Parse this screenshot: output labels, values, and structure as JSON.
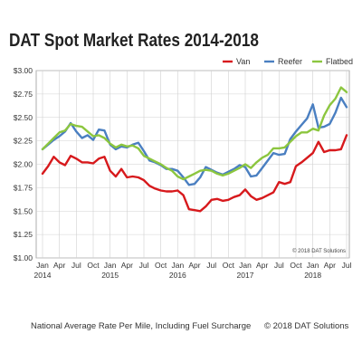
{
  "title": "DAT Spot Market Rates 2014-2018",
  "footer": {
    "caption": "National Average Rate Per Mile, Including Fuel Surcharge",
    "copyright": "© 2018 DAT Solutions"
  },
  "chart_data": {
    "type": "line",
    "title": "DAT Spot Market Rates 2014-2018",
    "xlabel": "",
    "ylabel": "",
    "ylim": [
      1.0,
      3.0
    ],
    "yticks": [
      1.0,
      1.25,
      1.5,
      1.75,
      2.0,
      2.25,
      2.5,
      2.75,
      3.0
    ],
    "ytick_labels": [
      "$1.00",
      "$1.25",
      "$1.50",
      "$1.75",
      "$2.00",
      "$2.25",
      "$2.50",
      "$2.75",
      "$3.00"
    ],
    "xtick_months": [
      "Jan",
      "Apr",
      "Jul",
      "Oct",
      "Jan",
      "Apr",
      "Jul",
      "Oct",
      "Jan",
      "Apr",
      "Jul",
      "Oct",
      "Jan",
      "Apr",
      "Jul",
      "Oct",
      "Jan",
      "Apr",
      "Jul"
    ],
    "xtick_years": [
      "2014",
      "",
      "",
      "",
      "2015",
      "",
      "",
      "",
      "2016",
      "",
      "",
      "",
      "2017",
      "",
      "",
      "",
      "2018",
      "",
      ""
    ],
    "grid": true,
    "legend_position": "top-right",
    "watermark": "© 2018 DAT Solutions",
    "x_start": "Jan 2014",
    "x_end": "Jul 2018",
    "series": [
      {
        "name": "Van",
        "color": "#d7191c",
        "values": [
          1.9,
          1.98,
          2.08,
          2.02,
          1.99,
          2.09,
          2.06,
          2.02,
          2.02,
          2.01,
          2.06,
          2.08,
          1.93,
          1.87,
          1.95,
          1.86,
          1.87,
          1.86,
          1.83,
          1.77,
          1.74,
          1.72,
          1.71,
          1.71,
          1.72,
          1.67,
          1.52,
          1.51,
          1.5,
          1.55,
          1.62,
          1.63,
          1.61,
          1.62,
          1.65,
          1.67,
          1.73,
          1.66,
          1.62,
          1.64,
          1.67,
          1.7,
          1.81,
          1.79,
          1.81,
          1.98,
          2.02,
          2.07,
          2.12,
          2.24,
          2.13,
          2.15,
          2.15,
          2.16,
          2.31
        ]
      },
      {
        "name": "Reefer",
        "color": "#4a7fc1",
        "values": [
          2.16,
          2.21,
          2.26,
          2.3,
          2.35,
          2.44,
          2.35,
          2.28,
          2.31,
          2.26,
          2.37,
          2.36,
          2.21,
          2.16,
          2.19,
          2.18,
          2.21,
          2.23,
          2.14,
          2.04,
          2.02,
          1.99,
          1.95,
          1.95,
          1.93,
          1.86,
          1.78,
          1.79,
          1.86,
          1.97,
          1.94,
          1.91,
          1.89,
          1.92,
          1.95,
          1.99,
          1.97,
          1.87,
          1.88,
          1.96,
          2.04,
          2.12,
          2.1,
          2.11,
          2.27,
          2.35,
          2.42,
          2.49,
          2.64,
          2.39,
          2.4,
          2.43,
          2.55,
          2.71,
          2.61
        ]
      },
      {
        "name": "Flatbed",
        "color": "#8cc63f",
        "values": [
          2.16,
          2.22,
          2.28,
          2.34,
          2.36,
          2.43,
          2.41,
          2.4,
          2.35,
          2.3,
          2.31,
          2.28,
          2.22,
          2.18,
          2.21,
          2.19,
          2.2,
          2.17,
          2.09,
          2.06,
          2.03,
          2.0,
          1.96,
          1.93,
          1.87,
          1.84,
          1.87,
          1.9,
          1.93,
          1.94,
          1.93,
          1.9,
          1.88,
          1.9,
          1.93,
          1.96,
          2.0,
          1.96,
          2.02,
          2.07,
          2.1,
          2.17,
          2.17,
          2.18,
          2.24,
          2.3,
          2.34,
          2.34,
          2.38,
          2.36,
          2.52,
          2.63,
          2.7,
          2.82,
          2.77
        ]
      }
    ]
  }
}
